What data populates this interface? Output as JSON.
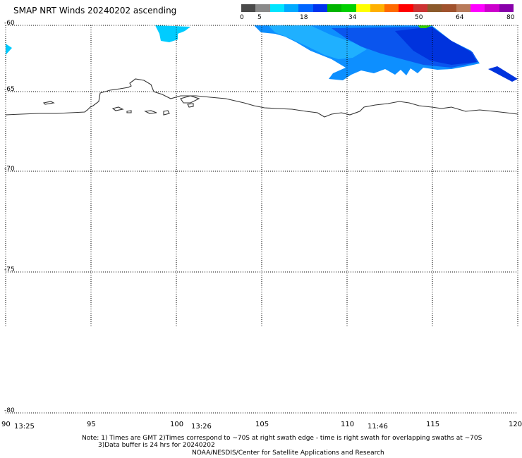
{
  "title": "SMAP NRT Winds 20240202 ascending",
  "colorbar": {
    "labels": [
      "0",
      "5",
      "18",
      "34",
      "50",
      "64",
      "80"
    ],
    "colors": [
      "#4a4a4a",
      "#8a8a8a",
      "#00e5ff",
      "#00aaff",
      "#0066ff",
      "#0033ee",
      "#00b400",
      "#00d000",
      "#ffff00",
      "#ffb000",
      "#ff6a00",
      "#ff0000",
      "#cc3333",
      "#8b5a2b",
      "#a0522d",
      "#b87a5a",
      "#ff00ff",
      "#cc00cc",
      "#8800aa"
    ]
  },
  "axes": {
    "lat_labels": [
      "-60",
      "-65",
      "-70",
      "-75",
      "-80"
    ],
    "lon_labels": [
      "90",
      "95",
      "100",
      "105",
      "110",
      "115",
      "120"
    ]
  },
  "swath_times": [
    "13:25",
    "13:26",
    "11:46"
  ],
  "notes": {
    "line1": "Note: 1) Times are GMT 2)Times correspond to ~70S at right swath edge - time is right swath for overlapping swaths at ~70S",
    "line2": "3)Data buffer is 24 hrs for 20240202",
    "line3": "NOAA/NESDIS/Center for Satellite Applications and Research"
  }
}
